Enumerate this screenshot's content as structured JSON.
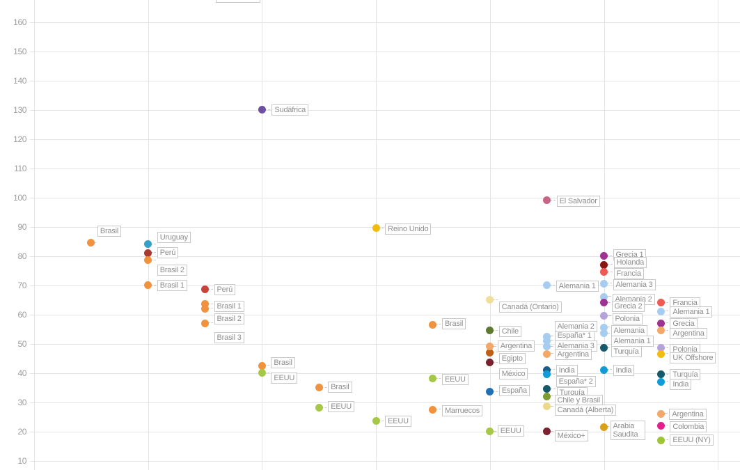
{
  "chart_data": {
    "type": "scatter",
    "title": "",
    "xlabel": "",
    "ylabel": "",
    "ylim": [
      10,
      160
    ],
    "grid": true,
    "y_axis": {
      "ticks": [
        160,
        150,
        140,
        130,
        120,
        110,
        100,
        90,
        80,
        70,
        60,
        50,
        40,
        30,
        20,
        10
      ]
    },
    "x_axis": {
      "gridline_columns": 7,
      "tick_labels_visible": false
    },
    "top_cut_label": {
      "text": ""
    },
    "colors": {
      "orange": "#F0923E",
      "teal_blue": "#36A0C9",
      "dark_red": "#A93A32",
      "red": "#C8443A",
      "purple": "#6C4FA1",
      "green": "#A6C846",
      "gold": "#F2BB10",
      "pale_yellow": "#F2DE9B",
      "dark_olive": "#5E7A31",
      "salmon": "#F3A869",
      "brown_orange": "#BC5F17",
      "maroon": "#79232E",
      "blue": "#1F70B4",
      "rose": "#C96489",
      "light_blue": "#A6CDEF",
      "magenta_purple": "#9E3391",
      "dark_red2": "#871911",
      "coral": "#EE5A54",
      "light_purple": "#B5A3DA",
      "dark_teal": "#16596B",
      "bright_blue": "#129BD7",
      "dark_gold": "#D9A01B",
      "magenta_pink": "#E31F8E",
      "khaki": "#EDD78C",
      "olive": "#7E9A33",
      "dark_blue": "#1A5C8A",
      "yellow_green": "#9EC437"
    },
    "points": [
      {
        "label": "Brasil",
        "x": 0.5,
        "v": 84.5,
        "c": "orange",
        "lox": 9,
        "loy": -25
      },
      {
        "label": "Uruguay",
        "x": 1,
        "v": 84,
        "c": "teal_blue",
        "lox": 13,
        "loy": -18
      },
      {
        "label": "Perú",
        "x": 1,
        "v": 81,
        "c": "dark_red",
        "lox": 13,
        "loy": -8
      },
      {
        "label": "Brasil 2",
        "x": 1,
        "v": 78.5,
        "c": "orange",
        "lox": 13,
        "loy": 6
      },
      {
        "label": "Brasil 1",
        "x": 1,
        "v": 70,
        "c": "orange",
        "lox": 13,
        "loy": -8
      },
      {
        "label": "Perú",
        "x": 1.5,
        "v": 68.5,
        "c": "red",
        "lox": 13,
        "loy": -8
      },
      {
        "label": "Brasil 1",
        "x": 1.5,
        "v": 63.5,
        "c": "orange",
        "lox": 13,
        "loy": -5
      },
      {
        "label": "Brasil 2",
        "x": 1.5,
        "v": 62,
        "c": "orange",
        "lox": 13,
        "loy": 7
      },
      {
        "label": "Brasil 3",
        "x": 1.5,
        "v": 57,
        "c": "orange",
        "lox": 13,
        "loy": 13
      },
      {
        "label": "Sudáfrica",
        "x": 2,
        "v": 130,
        "c": "purple",
        "lox": 14,
        "loy": -8
      },
      {
        "label": "Brasil",
        "x": 2,
        "v": 42.5,
        "c": "orange",
        "lox": 13,
        "loy": -12
      },
      {
        "label": "EEUU",
        "x": 2,
        "v": 40,
        "c": "green",
        "lox": 13,
        "loy": -1
      },
      {
        "label": "Brasil",
        "x": 2.5,
        "v": 35,
        "c": "orange",
        "lox": 13,
        "loy": -9
      },
      {
        "label": "EEUU",
        "x": 2.5,
        "v": 28,
        "c": "green",
        "lox": 13,
        "loy": -10
      },
      {
        "label": "Reino Unido",
        "x": 3,
        "v": 89.5,
        "c": "gold",
        "lox": 13,
        "loy": -7
      },
      {
        "label": "EEUU",
        "x": 3,
        "v": 23.5,
        "c": "green",
        "lox": 13,
        "loy": -8
      },
      {
        "label": "Brasil",
        "x": 3.5,
        "v": 56.5,
        "c": "orange",
        "lox": 13,
        "loy": -9
      },
      {
        "label": "EEUU",
        "x": 3.5,
        "v": 38,
        "c": "green",
        "lox": 13,
        "loy": -7
      },
      {
        "label": "Marruecos",
        "x": 3.5,
        "v": 27.5,
        "c": "orange",
        "lox": 13,
        "loy": -6
      },
      {
        "label": "Canadá (Ontario)",
        "x": 4,
        "v": 65,
        "c": "pale_yellow",
        "lox": 13,
        "loy": 2
      },
      {
        "label": "Chile",
        "x": 4,
        "v": 54.5,
        "c": "dark_olive",
        "lox": 13,
        "loy": -7
      },
      {
        "label": "Egipto",
        "x": 4,
        "v": 47,
        "c": "brown_orange",
        "lox": 13,
        "loy": 1
      },
      {
        "label": "Argentina",
        "x": 4,
        "v": 49,
        "c": "salmon",
        "lox": 11,
        "loy": -9
      },
      {
        "label": "México",
        "x": 4,
        "v": 43.5,
        "c": "maroon",
        "lox": 13,
        "loy": 8
      },
      {
        "label": "España",
        "x": 4,
        "v": 33.5,
        "c": "blue",
        "lox": 13,
        "loy": -10
      },
      {
        "label": "EEUU",
        "x": 4,
        "v": 20,
        "c": "green",
        "lox": 11,
        "loy": -9
      },
      {
        "label": "El Salvador",
        "x": 4.5,
        "v": 99,
        "c": "rose",
        "lox": 14,
        "loy": -7
      },
      {
        "label": "Alemania 1",
        "x": 4.5,
        "v": 70,
        "c": "light_blue",
        "lox": 13,
        "loy": -7
      },
      {
        "label": "España* 1",
        "x": 4.5,
        "v": 51,
        "c": "light_blue",
        "lox": 11,
        "loy": -15
      },
      {
        "label": "Alemania 2",
        "x": 4.5,
        "v": 52.5,
        "c": "light_blue",
        "lox": 11,
        "loy": -22
      },
      {
        "label": "Alemania 3",
        "x": 4.5,
        "v": 49,
        "c": "light_blue",
        "lox": 11,
        "loy": -9
      },
      {
        "label": "Argentina",
        "x": 4.5,
        "v": 46.5,
        "c": "salmon",
        "lox": 11,
        "loy": -7
      },
      {
        "label": "España* 2",
        "x": 4.5,
        "v": 41,
        "c": "dark_blue",
        "lox": 13,
        "loy": 9
      },
      {
        "label": "India",
        "x": 4.5,
        "v": 39.5,
        "c": "bright_blue",
        "lox": 13,
        "loy": -14
      },
      {
        "label": "Turquía",
        "x": 4.5,
        "v": 34.5,
        "c": "dark_teal",
        "lox": 14,
        "loy": -3
      },
      {
        "label": "Chile y Brasil",
        "x": 4.5,
        "v": 32,
        "c": "olive",
        "lox": 11,
        "loy": -2
      },
      {
        "label": "Canadá (Alberta)",
        "x": 4.5,
        "v": 28.5,
        "c": "khaki",
        "lox": 11,
        "loy": -3
      },
      {
        "label": "México+",
        "x": 4.5,
        "v": 20,
        "c": "maroon",
        "lox": 11,
        "loy": -2
      },
      {
        "label": "Grecia 1",
        "x": 5,
        "v": 80,
        "c": "magenta_purple",
        "lox": 13,
        "loy": -10
      },
      {
        "label": "Holanda",
        "x": 5,
        "v": 77,
        "c": "dark_red2",
        "lox": 14,
        "loy": -11
      },
      {
        "label": "Francia",
        "x": 5,
        "v": 74.5,
        "c": "coral",
        "lox": 14,
        "loy": -6
      },
      {
        "label": "Alemania 3",
        "x": 5,
        "v": 70.5,
        "c": "light_blue",
        "lox": 13,
        "loy": -6
      },
      {
        "label": "Alemania 2",
        "x": 5,
        "v": 66,
        "c": "light_blue",
        "lox": 12,
        "loy": -4
      },
      {
        "label": "Grecia 2",
        "x": 5,
        "v": 64,
        "c": "magenta_purple",
        "lox": 11,
        "loy": -3
      },
      {
        "label": "Polonia",
        "x": 5,
        "v": 59.5,
        "c": "light_purple",
        "lox": 12,
        "loy": -4
      },
      {
        "label": "Alemania",
        "x": 5,
        "v": 55.5,
        "c": "light_blue",
        "lox": 10,
        "loy": -3
      },
      {
        "label": "Alemania 1",
        "x": 5,
        "v": 53.5,
        "c": "light_blue",
        "lox": 10,
        "loy": 3
      },
      {
        "label": "Turquía",
        "x": 5,
        "v": 48.5,
        "c": "dark_teal",
        "lox": 10,
        "loy": -3
      },
      {
        "label": "India",
        "x": 5,
        "v": 41,
        "c": "bright_blue",
        "lox": 13,
        "loy": -7
      },
      {
        "label": "Arabia Saudita",
        "x": 5,
        "v": 21.5,
        "c": "dark_gold",
        "lox": 9,
        "loy": -9,
        "wrap": true
      },
      {
        "label": "Francia",
        "x": 5.5,
        "v": 64,
        "c": "coral",
        "lox": 13,
        "loy": -8
      },
      {
        "label": "Alemania 1",
        "x": 5.5,
        "v": 61,
        "c": "light_blue",
        "lox": 13,
        "loy": -7
      },
      {
        "label": "Grecia",
        "x": 5.5,
        "v": 57,
        "c": "magenta_purple",
        "lox": 13,
        "loy": -7
      },
      {
        "label": "Argentina",
        "x": 5.5,
        "v": 54.5,
        "c": "salmon",
        "lox": 13,
        "loy": -4
      },
      {
        "label": "Polonia",
        "x": 5.5,
        "v": 48.5,
        "c": "light_purple",
        "lox": 13,
        "loy": -6
      },
      {
        "label": "UK Offshore",
        "x": 5.5,
        "v": 46.5,
        "c": "gold",
        "lox": 13,
        "loy": -2
      },
      {
        "label": "Turquía",
        "x": 5.5,
        "v": 39.5,
        "c": "dark_teal",
        "lox": 13,
        "loy": -8
      },
      {
        "label": "India",
        "x": 5.5,
        "v": 37,
        "c": "bright_blue",
        "lox": 13,
        "loy": -4
      },
      {
        "label": "Argentina",
        "x": 5.5,
        "v": 26,
        "c": "salmon",
        "lox": 12,
        "loy": -7
      },
      {
        "label": "Colombia",
        "x": 5.5,
        "v": 22,
        "c": "magenta_pink",
        "lox": 13,
        "loy": -6
      },
      {
        "label": "EEUU (NY)",
        "x": 5.5,
        "v": 17,
        "c": "yellow_green",
        "lox": 13,
        "loy": -8
      }
    ]
  }
}
